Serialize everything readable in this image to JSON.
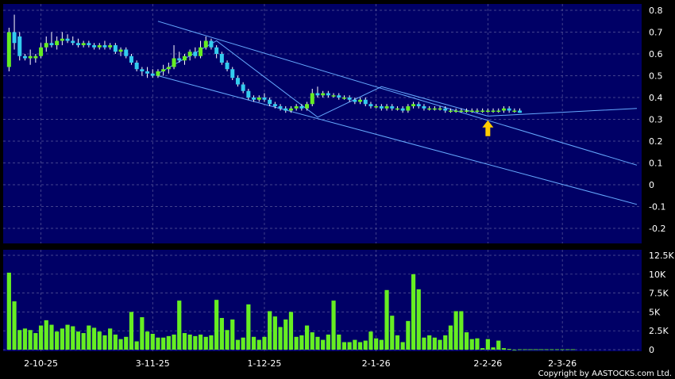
{
  "chart_data": [
    {
      "type": "candlestick",
      "panel": "price",
      "y_ticks": [
        "0.8",
        "0.7",
        "0.6",
        "0.5",
        "0.4",
        "0.3",
        "0.2",
        "0.1",
        "0",
        "-0.1",
        "-0.2"
      ],
      "ylim": [
        -0.25,
        0.82
      ],
      "x_ticks": [
        "2-10-25",
        "3-11-25",
        "1-12-25",
        "2-1-26",
        "2-2-26",
        "2-3-26"
      ],
      "grid": true,
      "colors": {
        "background": "#000066",
        "up": "#66ee22",
        "down": "#33ccee",
        "trendline": "#66aaff",
        "arrow": "#ffcc00"
      },
      "candles": [
        [
          0.54,
          0.72,
          0.52,
          0.7
        ],
        [
          0.7,
          0.78,
          0.62,
          0.65
        ],
        [
          0.68,
          0.7,
          0.57,
          0.59
        ],
        [
          0.59,
          0.6,
          0.57,
          0.58
        ],
        [
          0.58,
          0.62,
          0.55,
          0.59
        ],
        [
          0.58,
          0.6,
          0.56,
          0.59
        ],
        [
          0.59,
          0.65,
          0.58,
          0.63
        ],
        [
          0.63,
          0.68,
          0.61,
          0.65
        ],
        [
          0.65,
          0.7,
          0.63,
          0.64
        ],
        [
          0.64,
          0.68,
          0.62,
          0.66
        ],
        [
          0.66,
          0.7,
          0.64,
          0.67
        ],
        [
          0.67,
          0.69,
          0.65,
          0.66
        ],
        [
          0.66,
          0.68,
          0.64,
          0.65
        ],
        [
          0.65,
          0.67,
          0.63,
          0.64
        ],
        [
          0.64,
          0.66,
          0.63,
          0.65
        ],
        [
          0.65,
          0.66,
          0.63,
          0.64
        ],
        [
          0.64,
          0.65,
          0.62,
          0.63
        ],
        [
          0.63,
          0.65,
          0.62,
          0.64
        ],
        [
          0.64,
          0.66,
          0.62,
          0.63
        ],
        [
          0.63,
          0.65,
          0.62,
          0.64
        ],
        [
          0.64,
          0.65,
          0.6,
          0.61
        ],
        [
          0.61,
          0.63,
          0.59,
          0.62
        ],
        [
          0.62,
          0.63,
          0.58,
          0.59
        ],
        [
          0.59,
          0.6,
          0.55,
          0.56
        ],
        [
          0.56,
          0.57,
          0.52,
          0.53
        ],
        [
          0.53,
          0.54,
          0.5,
          0.52
        ],
        [
          0.52,
          0.54,
          0.49,
          0.51
        ],
        [
          0.51,
          0.53,
          0.49,
          0.5
        ],
        [
          0.5,
          0.53,
          0.49,
          0.52
        ],
        [
          0.52,
          0.55,
          0.5,
          0.53
        ],
        [
          0.53,
          0.56,
          0.51,
          0.54
        ],
        [
          0.54,
          0.64,
          0.53,
          0.58
        ],
        [
          0.58,
          0.61,
          0.56,
          0.57
        ],
        [
          0.57,
          0.6,
          0.55,
          0.59
        ],
        [
          0.59,
          0.62,
          0.57,
          0.61
        ],
        [
          0.61,
          0.63,
          0.58,
          0.59
        ],
        [
          0.59,
          0.66,
          0.58,
          0.63
        ],
        [
          0.63,
          0.68,
          0.62,
          0.66
        ],
        [
          0.66,
          0.67,
          0.62,
          0.63
        ],
        [
          0.63,
          0.64,
          0.58,
          0.6
        ],
        [
          0.6,
          0.61,
          0.55,
          0.56
        ],
        [
          0.56,
          0.57,
          0.52,
          0.53
        ],
        [
          0.53,
          0.54,
          0.48,
          0.49
        ],
        [
          0.49,
          0.5,
          0.45,
          0.46
        ],
        [
          0.46,
          0.47,
          0.42,
          0.43
        ],
        [
          0.43,
          0.44,
          0.39,
          0.4
        ],
        [
          0.4,
          0.41,
          0.38,
          0.39
        ],
        [
          0.39,
          0.41,
          0.38,
          0.4
        ],
        [
          0.4,
          0.42,
          0.38,
          0.39
        ],
        [
          0.39,
          0.4,
          0.36,
          0.37
        ],
        [
          0.37,
          0.38,
          0.35,
          0.36
        ],
        [
          0.36,
          0.37,
          0.34,
          0.35
        ],
        [
          0.35,
          0.36,
          0.33,
          0.34
        ],
        [
          0.34,
          0.36,
          0.33,
          0.35
        ],
        [
          0.35,
          0.37,
          0.34,
          0.36
        ],
        [
          0.36,
          0.37,
          0.34,
          0.35
        ],
        [
          0.35,
          0.38,
          0.34,
          0.37
        ],
        [
          0.37,
          0.44,
          0.36,
          0.42
        ],
        [
          0.42,
          0.45,
          0.4,
          0.41
        ],
        [
          0.41,
          0.43,
          0.4,
          0.42
        ],
        [
          0.42,
          0.43,
          0.4,
          0.41
        ],
        [
          0.41,
          0.42,
          0.4,
          0.41
        ],
        [
          0.41,
          0.42,
          0.39,
          0.4
        ],
        [
          0.4,
          0.41,
          0.39,
          0.4
        ],
        [
          0.4,
          0.41,
          0.38,
          0.39
        ],
        [
          0.39,
          0.4,
          0.37,
          0.38
        ],
        [
          0.38,
          0.4,
          0.37,
          0.39
        ],
        [
          0.39,
          0.4,
          0.36,
          0.37
        ],
        [
          0.37,
          0.38,
          0.35,
          0.36
        ],
        [
          0.36,
          0.37,
          0.35,
          0.36
        ],
        [
          0.36,
          0.37,
          0.34,
          0.35
        ],
        [
          0.35,
          0.37,
          0.34,
          0.36
        ],
        [
          0.36,
          0.37,
          0.34,
          0.35
        ],
        [
          0.35,
          0.36,
          0.34,
          0.35
        ],
        [
          0.35,
          0.36,
          0.33,
          0.34
        ],
        [
          0.34,
          0.37,
          0.33,
          0.36
        ],
        [
          0.36,
          0.38,
          0.35,
          0.37
        ],
        [
          0.37,
          0.38,
          0.35,
          0.36
        ],
        [
          0.36,
          0.37,
          0.34,
          0.35
        ],
        [
          0.35,
          0.36,
          0.34,
          0.35
        ],
        [
          0.35,
          0.36,
          0.34,
          0.35
        ],
        [
          0.35,
          0.36,
          0.34,
          0.35
        ],
        [
          0.35,
          0.36,
          0.33,
          0.34
        ],
        [
          0.34,
          0.35,
          0.33,
          0.34
        ],
        [
          0.34,
          0.35,
          0.33,
          0.34
        ],
        [
          0.34,
          0.35,
          0.33,
          0.34
        ],
        [
          0.34,
          0.35,
          0.33,
          0.34
        ],
        [
          0.34,
          0.35,
          0.33,
          0.34
        ],
        [
          0.34,
          0.35,
          0.33,
          0.34
        ],
        [
          0.34,
          0.35,
          0.33,
          0.34
        ],
        [
          0.34,
          0.35,
          0.33,
          0.34
        ],
        [
          0.34,
          0.35,
          0.33,
          0.34
        ],
        [
          0.34,
          0.35,
          0.33,
          0.34
        ],
        [
          0.34,
          0.36,
          0.33,
          0.35
        ],
        [
          0.35,
          0.36,
          0.33,
          0.34
        ],
        [
          0.34,
          0.35,
          0.33,
          0.34
        ],
        [
          0.34,
          0.35,
          0.33,
          0.33
        ]
      ],
      "trendlines": [
        [
          [
            28,
            0.75
          ],
          [
            118,
            0.09
          ]
        ],
        [
          [
            28,
            0.5
          ],
          [
            118,
            -0.09
          ]
        ],
        [
          [
            28,
            0.51
          ],
          [
            39,
            0.66
          ],
          [
            58,
            0.31
          ],
          [
            70,
            0.45
          ],
          [
            90,
            0.315
          ],
          [
            118,
            0.35
          ]
        ]
      ],
      "arrow_at": [
        90,
        0.31
      ]
    },
    {
      "type": "bar",
      "panel": "volume",
      "y_ticks": [
        "12.5K",
        "10K",
        "7.5K",
        "5K",
        "2.5K",
        "0"
      ],
      "ylim": [
        0,
        12500
      ],
      "values": [
        10200,
        6400,
        2600,
        2800,
        2600,
        2200,
        3200,
        3900,
        3300,
        2400,
        2800,
        3300,
        3100,
        2400,
        2200,
        3200,
        2900,
        2400,
        1900,
        2800,
        2000,
        1400,
        1700,
        5000,
        1100,
        4300,
        2400,
        2100,
        1600,
        1600,
        1800,
        2000,
        6500,
        2200,
        2000,
        1800,
        2000,
        1700,
        1900,
        6600,
        4200,
        2600,
        4000,
        1300,
        1600,
        6000,
        1700,
        1300,
        1700,
        5100,
        4400,
        3000,
        4000,
        5000,
        1700,
        1900,
        3200,
        2300,
        1700,
        1300,
        2000,
        6500,
        2000,
        1000,
        1000,
        1300,
        1000,
        1200,
        2400,
        1500,
        1300,
        7900,
        4500,
        1900,
        1000,
        3800,
        10000,
        8000,
        1600,
        1900,
        1600,
        1300,
        1900,
        3200,
        5100,
        5100,
        2300,
        1400,
        1500,
        200,
        1400,
        300,
        1200,
        200,
        100,
        0,
        50,
        50,
        50,
        50,
        50,
        50,
        50,
        50,
        50,
        50,
        50
      ],
      "grid": true,
      "colors": {
        "bar": "#66ee22",
        "background": "#000066"
      }
    }
  ],
  "copyright": "Copyright by AASTOCKS.com Ltd."
}
